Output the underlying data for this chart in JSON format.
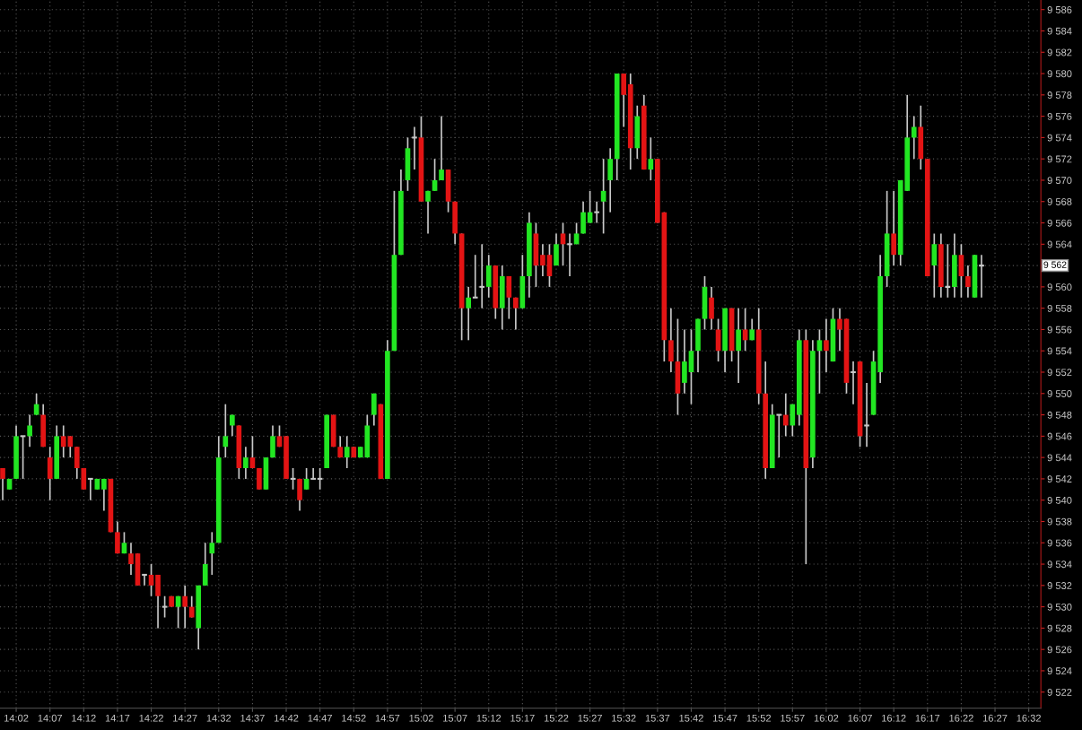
{
  "chart_data": {
    "type": "candlestick",
    "x": [
      14.0,
      14.0167,
      14.0333,
      14.05,
      14.0667,
      14.0833,
      14.1,
      14.1167,
      14.1333,
      14.15,
      14.1667,
      14.1833,
      14.2,
      14.2167,
      14.2333,
      14.25,
      14.2667,
      14.2833,
      14.3,
      14.3167,
      14.3333,
      14.35,
      14.3667,
      14.3833,
      14.4,
      14.4167,
      14.4333,
      14.45,
      14.4667,
      14.4833,
      14.5,
      14.5167,
      14.5333,
      14.55,
      14.5667,
      14.5833,
      14.6,
      14.6167,
      14.6333,
      14.65,
      14.6667,
      14.6833,
      14.7,
      14.7167,
      14.7333,
      14.75,
      14.7667,
      14.7833,
      14.8,
      14.8167,
      14.8333,
      14.85,
      14.8667,
      14.8833,
      14.9,
      14.9167,
      14.9333,
      14.95,
      14.9667,
      14.9833,
      15.0,
      15.0167,
      15.0333,
      15.05,
      15.0667,
      15.0833,
      15.1,
      15.1167,
      15.1333,
      15.15,
      15.1667,
      15.1833,
      15.2,
      15.2167,
      15.2333,
      15.25,
      15.2667,
      15.2833,
      15.3,
      15.3167,
      15.3333,
      15.35,
      15.3667,
      15.3833,
      15.4,
      15.4167,
      15.4333,
      15.45,
      15.4667,
      15.4833,
      15.5,
      15.5167,
      15.5333,
      15.55,
      15.5667,
      15.5833,
      15.6,
      15.6167,
      15.6333,
      15.65,
      15.6667,
      15.6833,
      15.7,
      15.7167,
      15.7333,
      15.75,
      15.7667,
      15.7833,
      15.8,
      15.8167,
      15.8333,
      15.85,
      15.8667,
      15.8833,
      15.9,
      15.9167,
      15.9333,
      15.95,
      15.9667,
      15.9833,
      16.0,
      16.0167,
      16.0333,
      16.05,
      16.0667,
      16.0833,
      16.1,
      16.1167,
      16.1333,
      16.15,
      16.1667,
      16.1833,
      16.2,
      16.2167,
      16.2333,
      16.25,
      16.2667,
      16.2833,
      16.3,
      16.3167,
      16.3333,
      16.35,
      16.3667,
      16.3833,
      16.4,
      16.4167
    ],
    "ohlc": [
      [
        9543,
        9543,
        9540,
        9542
      ],
      [
        9541,
        9542,
        9541,
        9542
      ],
      [
        9542,
        9547,
        9542,
        9546
      ],
      [
        9546,
        9546,
        9542,
        9546
      ],
      [
        9546,
        9548,
        9545,
        9547
      ],
      [
        9548,
        9550,
        9548,
        9549
      ],
      [
        9548,
        9549,
        9545,
        9545
      ],
      [
        9544,
        9545,
        9540,
        9542
      ],
      [
        9542,
        9547,
        9542,
        9546
      ],
      [
        9546,
        9547,
        9544,
        9545
      ],
      [
        9546,
        9546,
        9544,
        9545
      ],
      [
        9545,
        9545,
        9542,
        9543
      ],
      [
        9543,
        9543,
        9541,
        9541
      ],
      [
        9542,
        9542,
        9540,
        9542
      ],
      [
        9541,
        9542,
        9541,
        9542
      ],
      [
        9541,
        9542,
        9539,
        9542
      ],
      [
        9542,
        9542,
        9537,
        9537
      ],
      [
        9537,
        9538,
        9535,
        9535
      ],
      [
        9535,
        9537,
        9535,
        9536
      ],
      [
        9535,
        9536,
        9533,
        9534
      ],
      [
        9535,
        9535,
        9532,
        9532
      ],
      [
        9533,
        9533,
        9532,
        9533
      ],
      [
        9533,
        9534,
        9531,
        9532
      ],
      [
        9533,
        9533,
        9528,
        9531
      ],
      [
        9530,
        9531,
        9529,
        9530
      ],
      [
        9531,
        9531,
        9530,
        9530
      ],
      [
        9530,
        9531,
        9528,
        9531
      ],
      [
        9531,
        9532,
        9528,
        9530
      ],
      [
        9530,
        9531,
        9529,
        9529
      ],
      [
        9528,
        9532,
        9526,
        9532
      ],
      [
        9532,
        9536,
        9532,
        9534
      ],
      [
        9535,
        9537,
        9533,
        9536
      ],
      [
        9536,
        9546,
        9536,
        9544
      ],
      [
        9545,
        9549,
        9544,
        9546
      ],
      [
        9547,
        9548,
        9546,
        9548
      ],
      [
        9547,
        9547,
        9542,
        9543
      ],
      [
        9543,
        9545,
        9542,
        9544
      ],
      [
        9544,
        9546,
        9543,
        9543
      ],
      [
        9543,
        9543,
        9541,
        9541
      ],
      [
        9541,
        9544,
        9541,
        9544
      ],
      [
        9544,
        9547,
        9544,
        9546
      ],
      [
        9546,
        9547,
        9545,
        9545
      ],
      [
        9546,
        9546,
        9542,
        9542
      ],
      [
        9542,
        9543,
        9541,
        9542
      ],
      [
        9542,
        9542,
        9539,
        9540
      ],
      [
        9541,
        9543,
        9541,
        9542
      ],
      [
        9542,
        9543,
        9542,
        9542
      ],
      [
        9542,
        9543,
        9541,
        9542
      ],
      [
        9543,
        9548,
        9543,
        9548
      ],
      [
        9548,
        9548,
        9545,
        9545
      ],
      [
        9545,
        9546,
        9544,
        9544
      ],
      [
        9544,
        9546,
        9543,
        9545
      ],
      [
        9545,
        9545,
        9544,
        9544
      ],
      [
        9544,
        9545,
        9544,
        9545
      ],
      [
        9544,
        9548,
        9544,
        9547
      ],
      [
        9548,
        9550,
        9547,
        9550
      ],
      [
        9549,
        9549,
        9542,
        9542
      ],
      [
        9542,
        9555,
        9542,
        9554
      ],
      [
        9554,
        9569,
        9554,
        9563
      ],
      [
        9563,
        9571,
        9563,
        9569
      ],
      [
        9570,
        9574,
        9569,
        9573
      ],
      [
        9574,
        9575,
        9571,
        9574
      ],
      [
        9574,
        9576,
        9568,
        9568
      ],
      [
        9568,
        9569,
        9565,
        9569
      ],
      [
        9569,
        9572,
        9569,
        9570
      ],
      [
        9570,
        9576,
        9570,
        9571
      ],
      [
        9571,
        9571,
        9567,
        9568
      ],
      [
        9568,
        9568,
        9564,
        9565
      ],
      [
        9565,
        9565,
        9555,
        9558
      ],
      [
        9558,
        9560,
        9555,
        9559
      ],
      [
        9559,
        9563,
        9559,
        9559
      ],
      [
        9560,
        9564,
        9558,
        9560
      ],
      [
        9560,
        9563,
        9559,
        9562
      ],
      [
        9562,
        9562,
        9557,
        9558
      ],
      [
        9558,
        9562,
        9556,
        9561
      ],
      [
        9561,
        9561,
        9557,
        9559
      ],
      [
        9559,
        9559,
        9556,
        9558
      ],
      [
        9558,
        9563,
        9558,
        9561
      ],
      [
        9561,
        9567,
        9559,
        9566
      ],
      [
        9565,
        9566,
        9560,
        9562
      ],
      [
        9563,
        9564,
        9561,
        9562
      ],
      [
        9563,
        9564,
        9560,
        9561
      ],
      [
        9562,
        9565,
        9562,
        9564
      ],
      [
        9565,
        9566,
        9562,
        9564
      ],
      [
        9564,
        9565,
        9561,
        9564
      ],
      [
        9564,
        9566,
        9564,
        9565
      ],
      [
        9565,
        9568,
        9565,
        9567
      ],
      [
        9566,
        9569,
        9566,
        9567
      ],
      [
        9567,
        9568,
        9566,
        9567
      ],
      [
        9568,
        9572,
        9565,
        9569
      ],
      [
        9570,
        9573,
        9567,
        9572
      ],
      [
        9572,
        9580,
        9570,
        9580
      ],
      [
        9580,
        9580,
        9575,
        9578
      ],
      [
        9579,
        9580,
        9571,
        9573
      ],
      [
        9573,
        9577,
        9572,
        9576
      ],
      [
        9577,
        9578,
        9571,
        9571
      ],
      [
        9571,
        9574,
        9570,
        9572
      ],
      [
        9572,
        9572,
        9566,
        9566
      ],
      [
        9567,
        9567,
        9553,
        9555
      ],
      [
        9555,
        9558,
        9552,
        9553
      ],
      [
        9553,
        9557,
        9548,
        9550
      ],
      [
        9551,
        9556,
        9550,
        9553
      ],
      [
        9552,
        9556,
        9549,
        9554
      ],
      [
        9554,
        9557,
        9552,
        9557
      ],
      [
        9557,
        9561,
        9556,
        9560
      ],
      [
        9559,
        9560,
        9556,
        9557
      ],
      [
        9556,
        9557,
        9553,
        9554
      ],
      [
        9554,
        9558,
        9552,
        9558
      ],
      [
        9558,
        9558,
        9553,
        9554
      ],
      [
        9554,
        9558,
        9551,
        9556
      ],
      [
        9556,
        9558,
        9554,
        9555
      ],
      [
        9555,
        9557,
        9555,
        9556
      ],
      [
        9556,
        9558,
        9549,
        9550
      ],
      [
        9550,
        9553,
        9542,
        9543
      ],
      [
        9543,
        9549,
        9543,
        9548
      ],
      [
        9548,
        9548,
        9544,
        9548
      ],
      [
        9548,
        9550,
        9546,
        9547
      ],
      [
        9547,
        9549,
        9546,
        9549
      ],
      [
        9548,
        9556,
        9547,
        9555
      ],
      [
        9555,
        9556,
        9534,
        9543
      ],
      [
        9544,
        9555,
        9543,
        9554
      ],
      [
        9554,
        9556,
        9550,
        9555
      ],
      [
        9555,
        9557,
        9552,
        9554
      ],
      [
        9553,
        9558,
        9553,
        9557
      ],
      [
        9557,
        9558,
        9554,
        9556
      ],
      [
        9557,
        9557,
        9550,
        9551
      ],
      [
        9552,
        9553,
        9549,
        9552
      ],
      [
        9553,
        9553,
        9545,
        9546
      ],
      [
        9547,
        9551,
        9545,
        9547
      ],
      [
        9548,
        9554,
        9548,
        9553
      ],
      [
        9552,
        9563,
        9551,
        9561
      ],
      [
        9561,
        9569,
        9560,
        9565
      ],
      [
        9565,
        9569,
        9562,
        9563
      ],
      [
        9563,
        9570,
        9562,
        9570
      ],
      [
        9569,
        9578,
        9569,
        9574
      ],
      [
        9574,
        9576,
        9572,
        9575
      ],
      [
        9575,
        9577,
        9571,
        9572
      ],
      [
        9572,
        9572,
        9561,
        9561
      ],
      [
        9562,
        9565,
        9559,
        9564
      ],
      [
        9564,
        9565,
        9559,
        9560
      ],
      [
        9560,
        9564,
        9559,
        9560
      ],
      [
        9560,
        9565,
        9559,
        9563
      ],
      [
        9563,
        9564,
        9559,
        9561
      ],
      [
        9561,
        9562,
        9559,
        9560
      ],
      [
        9559,
        9563,
        9559,
        9563
      ],
      [
        9562,
        9563,
        9559,
        9562
      ]
    ],
    "colors": [
      "#e31414",
      "#22e622",
      "#22e622",
      "#c8c8c8",
      "#22e622",
      "#22e622",
      "#e31414",
      "#e31414",
      "#22e622",
      "#e31414",
      "#e31414",
      "#e31414",
      "#e31414",
      "#c8c8c8",
      "#22e622",
      "#22e622",
      "#e31414",
      "#e31414",
      "#22e622",
      "#e31414",
      "#e31414",
      "#c8c8c8",
      "#e31414",
      "#e31414",
      "#c8c8c8",
      "#e31414",
      "#22e622",
      "#e31414",
      "#e31414",
      "#22e622",
      "#22e622",
      "#22e622",
      "#22e622",
      "#22e622",
      "#22e622",
      "#e31414",
      "#22e622",
      "#e31414",
      "#e31414",
      "#22e622",
      "#22e622",
      "#e31414",
      "#e31414",
      "#c8c8c8",
      "#e31414",
      "#22e622",
      "#c8c8c8",
      "#c8c8c8",
      "#22e622",
      "#e31414",
      "#e31414",
      "#22e622",
      "#e31414",
      "#22e622",
      "#22e622",
      "#22e622",
      "#e31414",
      "#22e622",
      "#22e622",
      "#22e622",
      "#22e622",
      "#c8c8c8",
      "#e31414",
      "#22e622",
      "#22e622",
      "#22e622",
      "#e31414",
      "#e31414",
      "#e31414",
      "#22e622",
      "#c8c8c8",
      "#c8c8c8",
      "#22e622",
      "#e31414",
      "#22e622",
      "#e31414",
      "#e31414",
      "#22e622",
      "#22e622",
      "#e31414",
      "#e31414",
      "#e31414",
      "#22e622",
      "#e31414",
      "#c8c8c8",
      "#22e622",
      "#22e622",
      "#22e622",
      "#c8c8c8",
      "#22e622",
      "#22e622",
      "#22e622",
      "#e31414",
      "#e31414",
      "#22e622",
      "#e31414",
      "#22e622",
      "#e31414",
      "#e31414",
      "#e31414",
      "#e31414",
      "#22e622",
      "#22e622",
      "#22e622",
      "#22e622",
      "#e31414",
      "#e31414",
      "#22e622",
      "#e31414",
      "#22e622",
      "#e31414",
      "#22e622",
      "#e31414",
      "#e31414",
      "#22e622",
      "#c8c8c8",
      "#e31414",
      "#22e622",
      "#22e622",
      "#e31414",
      "#22e622",
      "#22e622",
      "#e31414",
      "#22e622",
      "#e31414",
      "#e31414",
      "#c8c8c8",
      "#e31414",
      "#c8c8c8",
      "#22e622",
      "#22e622",
      "#22e622",
      "#e31414",
      "#22e622",
      "#22e622",
      "#22e622",
      "#e31414",
      "#e31414",
      "#22e622",
      "#e31414",
      "#c8c8c8",
      "#22e622",
      "#e31414",
      "#e31414",
      "#22e622",
      "#c8c8c8"
    ],
    "annotations": [
      {
        "text": "9 562",
        "y": 9562
      }
    ],
    "xlim": [
      13.9933,
      16.5633
    ],
    "xticks": [
      {
        "value": 14.0333,
        "label": "14:02"
      },
      {
        "value": 14.1167,
        "label": "14:07"
      },
      {
        "value": 14.2,
        "label": "14:12"
      },
      {
        "value": 14.2833,
        "label": "14:17"
      },
      {
        "value": 14.3667,
        "label": "14:22"
      },
      {
        "value": 14.45,
        "label": "14:27"
      },
      {
        "value": 14.5333,
        "label": "14:32"
      },
      {
        "value": 14.6167,
        "label": "14:37"
      },
      {
        "value": 14.7,
        "label": "14:42"
      },
      {
        "value": 14.7833,
        "label": "14:47"
      },
      {
        "value": 14.8667,
        "label": "14:52"
      },
      {
        "value": 14.95,
        "label": "14:57"
      },
      {
        "value": 15.0333,
        "label": "15:02"
      },
      {
        "value": 15.1167,
        "label": "15:07"
      },
      {
        "value": 15.2,
        "label": "15:12"
      },
      {
        "value": 15.2833,
        "label": "15:17"
      },
      {
        "value": 15.3667,
        "label": "15:22"
      },
      {
        "value": 15.45,
        "label": "15:27"
      },
      {
        "value": 15.5333,
        "label": "15:32"
      },
      {
        "value": 15.6167,
        "label": "15:37"
      },
      {
        "value": 15.7,
        "label": "15:42"
      },
      {
        "value": 15.7833,
        "label": "15:47"
      },
      {
        "value": 15.8667,
        "label": "15:52"
      },
      {
        "value": 15.95,
        "label": "15:57"
      },
      {
        "value": 16.0333,
        "label": "16:02"
      },
      {
        "value": 16.1167,
        "label": "16:07"
      },
      {
        "value": 16.2,
        "label": "16:12"
      },
      {
        "value": 16.2833,
        "label": "16:17"
      },
      {
        "value": 16.3667,
        "label": "16:22"
      },
      {
        "value": 16.45,
        "label": "16:27"
      },
      {
        "value": 16.5333,
        "label": "16:32"
      }
    ],
    "ylim": [
      9520.5,
      9586.9
    ],
    "yticks": [
      {
        "value": 9522,
        "label": "9 522"
      },
      {
        "value": 9524,
        "label": "9 524"
      },
      {
        "value": 9526,
        "label": "9 526"
      },
      {
        "value": 9528,
        "label": "9 528"
      },
      {
        "value": 9530,
        "label": "9 530"
      },
      {
        "value": 9532,
        "label": "9 532"
      },
      {
        "value": 9534,
        "label": "9 534"
      },
      {
        "value": 9536,
        "label": "9 536"
      },
      {
        "value": 9538,
        "label": "9 538"
      },
      {
        "value": 9540,
        "label": "9 540"
      },
      {
        "value": 9542,
        "label": "9 542"
      },
      {
        "value": 9544,
        "label": "9 544"
      },
      {
        "value": 9546,
        "label": "9 546"
      },
      {
        "value": 9548,
        "label": "9 548"
      },
      {
        "value": 9550,
        "label": "9 550"
      },
      {
        "value": 9552,
        "label": "9 552"
      },
      {
        "value": 9554,
        "label": "9 554"
      },
      {
        "value": 9556,
        "label": "9 556"
      },
      {
        "value": 9558,
        "label": "9 558"
      },
      {
        "value": 9560,
        "label": "9 560"
      },
      {
        "value": 9562,
        "label": null
      },
      {
        "value": 9564,
        "label": "9 564"
      },
      {
        "value": 9566,
        "label": "9 566"
      },
      {
        "value": 9568,
        "label": "9 568"
      },
      {
        "value": 9570,
        "label": "9 570"
      },
      {
        "value": 9572,
        "label": "9 572"
      },
      {
        "value": 9574,
        "label": "9 574"
      },
      {
        "value": 9576,
        "label": "9 576"
      },
      {
        "value": 9578,
        "label": "9 578"
      },
      {
        "value": 9580,
        "label": "9 580"
      },
      {
        "value": 9582,
        "label": "9 582"
      },
      {
        "value": 9584,
        "label": "9 584"
      },
      {
        "value": 9586,
        "label": "9 586"
      }
    ],
    "grid": true
  }
}
